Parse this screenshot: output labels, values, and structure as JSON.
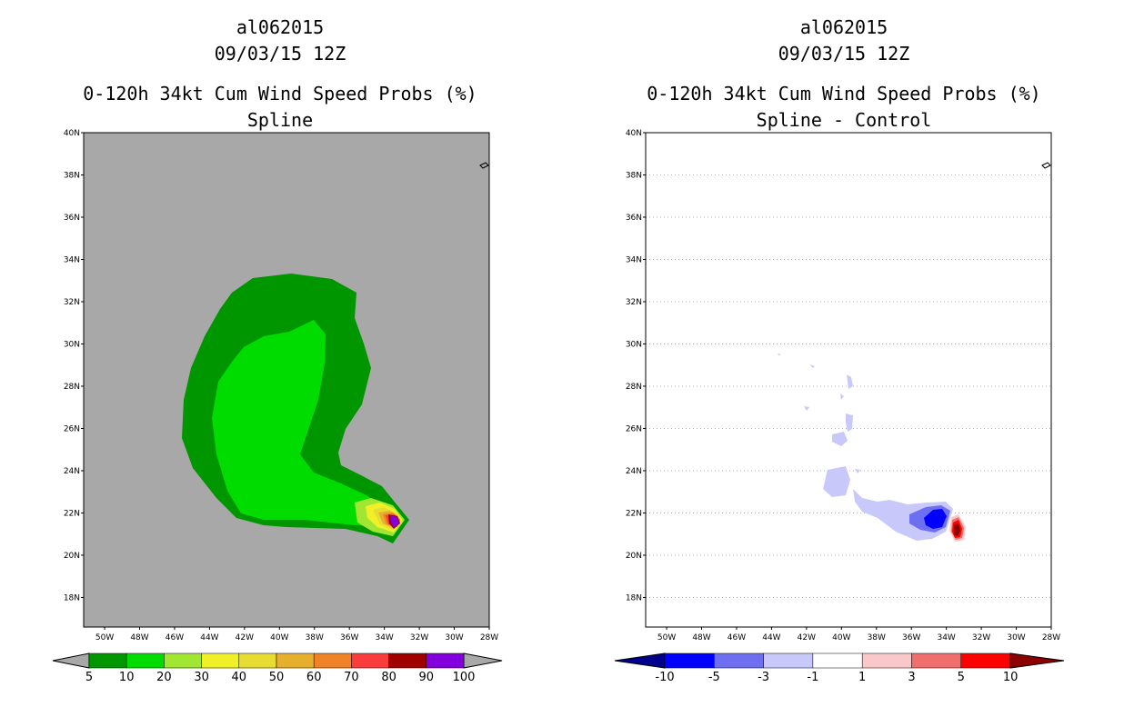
{
  "left_panel": {
    "storm_id": "al062015",
    "datetime": "09/03/15 12Z",
    "product": "0-120h 34kt Cum Wind Speed Probs (%)",
    "subtitle": "Spline",
    "background_color": "#a8a8a8"
  },
  "right_panel": {
    "storm_id": "al062015",
    "datetime": "09/03/15 12Z",
    "product": "0-120h 34kt Cum Wind Speed Probs (%)",
    "subtitle": "Spline - Control",
    "background_color": "#ffffff"
  },
  "axes": {
    "lat_labels": [
      "40N",
      "38N",
      "36N",
      "34N",
      "32N",
      "30N",
      "28N",
      "26N",
      "24N",
      "22N",
      "20N",
      "18N"
    ],
    "lon_labels": [
      "50W",
      "48W",
      "46W",
      "44W",
      "42W",
      "40W",
      "38W",
      "36W",
      "34W",
      "32W",
      "30W",
      "28W"
    ],
    "lat_range": [
      16.6,
      40
    ],
    "lon_range": [
      -51.2,
      -28
    ]
  },
  "left_colorbar": {
    "labels": [
      "5",
      "10",
      "20",
      "30",
      "40",
      "50",
      "60",
      "70",
      "80",
      "90",
      "100"
    ],
    "colors": [
      "#009600",
      "#00dc00",
      "#a0e632",
      "#f0f028",
      "#e6dc32",
      "#e6af2d",
      "#f08228",
      "#fa3c3c",
      "#a00000",
      "#8200dc"
    ],
    "end_color": "#a8a8a8"
  },
  "right_colorbar": {
    "labels": [
      "-10",
      "-5",
      "-3",
      "-1",
      "1",
      "3",
      "5",
      "10"
    ],
    "colors": [
      "#0000ff",
      "#6e6ef0",
      "#c8c8fa",
      "#ffffff",
      "#fac8c8",
      "#f06e6e",
      "#ff0000"
    ],
    "low_end_color": "#00008c",
    "high_end_color": "#8c0000"
  }
}
